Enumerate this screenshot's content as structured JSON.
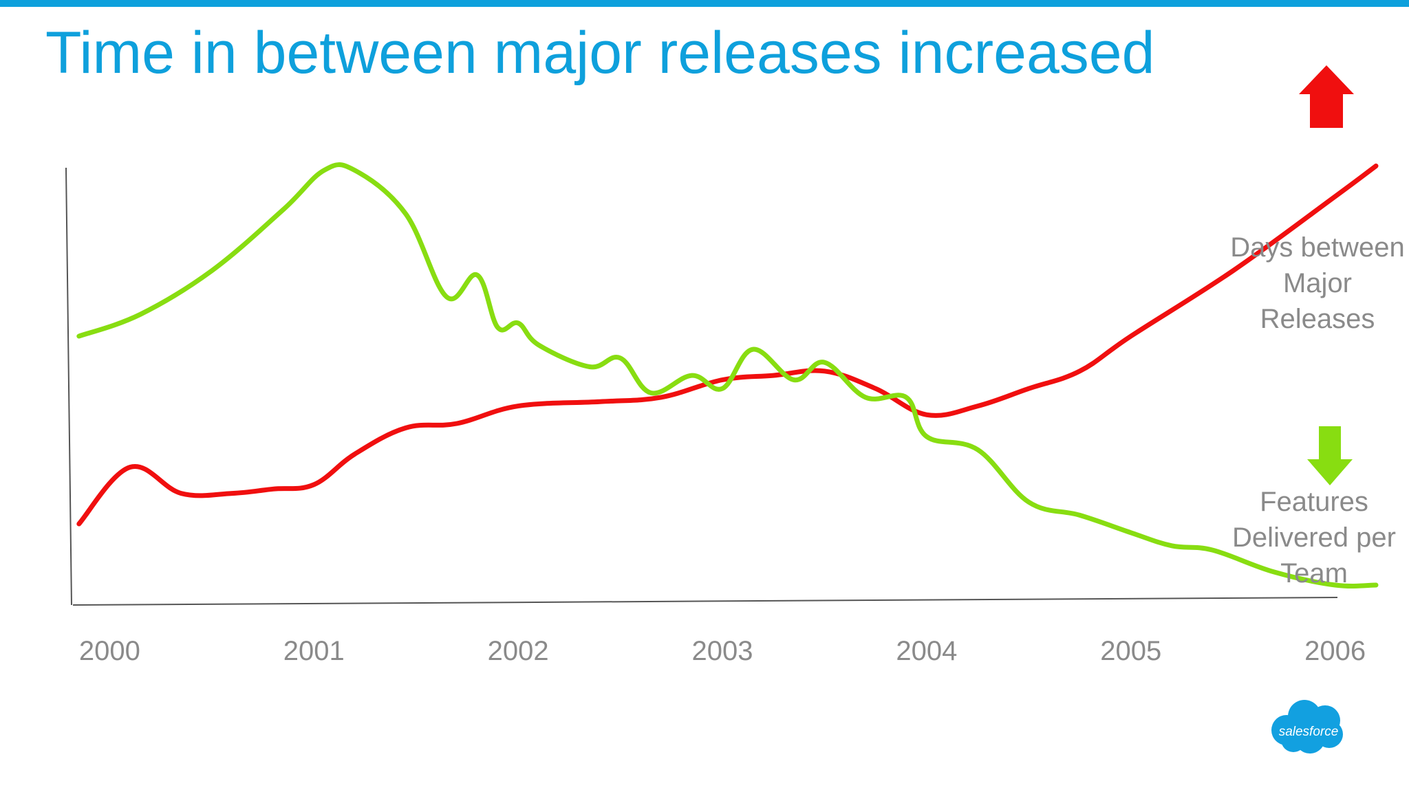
{
  "title": "Time in between major releases increased",
  "legend": {
    "days": [
      "Days between",
      "Major",
      "Releases"
    ],
    "features": [
      "Features",
      "Delivered per",
      "Team"
    ]
  },
  "logo_text": "salesforce",
  "colors": {
    "accent": "#0ea0dc",
    "days_series": "#f00f0f",
    "features_series": "#88dd11",
    "label_text": "#8a8a8a",
    "axis": "#555555"
  },
  "chart_data": {
    "type": "line",
    "x_ticks": [
      "2000",
      "2001",
      "2002",
      "2003",
      "2004",
      "2005",
      "2006"
    ],
    "xlim": [
      1999.8,
      2006.2
    ],
    "ylim": [
      0,
      100
    ],
    "y_axis_labels": false,
    "grid": false,
    "indicators": [
      {
        "series": "Days between Major Releases",
        "direction": "up",
        "color": "#f00f0f"
      },
      {
        "series": "Features Delivered per Team",
        "direction": "down",
        "color": "#88dd11"
      }
    ],
    "series": [
      {
        "name": "Days between Major Releases",
        "color": "#f00f0f",
        "points": [
          [
            1999.85,
            17
          ],
          [
            2000.1,
            30
          ],
          [
            2000.35,
            24
          ],
          [
            2000.6,
            24
          ],
          [
            2000.8,
            25
          ],
          [
            2001.0,
            26
          ],
          [
            2001.2,
            33
          ],
          [
            2001.45,
            39
          ],
          [
            2001.7,
            40
          ],
          [
            2002.0,
            44
          ],
          [
            2002.4,
            45
          ],
          [
            2002.7,
            46
          ],
          [
            2003.0,
            50
          ],
          [
            2003.25,
            51
          ],
          [
            2003.5,
            52
          ],
          [
            2003.75,
            48
          ],
          [
            2004.0,
            42
          ],
          [
            2004.25,
            44
          ],
          [
            2004.5,
            48
          ],
          [
            2004.75,
            52
          ],
          [
            2005.0,
            60
          ],
          [
            2005.5,
            75
          ],
          [
            2006.0,
            92
          ],
          [
            2006.2,
            99
          ]
        ]
      },
      {
        "name": "Features Delivered per Team",
        "color": "#88dd11",
        "points": [
          [
            1999.85,
            60
          ],
          [
            2000.15,
            65
          ],
          [
            2000.5,
            75
          ],
          [
            2000.85,
            89
          ],
          [
            2001.05,
            98
          ],
          [
            2001.2,
            98
          ],
          [
            2001.45,
            88
          ],
          [
            2001.65,
            69
          ],
          [
            2001.8,
            74
          ],
          [
            2001.9,
            62
          ],
          [
            2002.0,
            63
          ],
          [
            2002.1,
            58
          ],
          [
            2002.35,
            53
          ],
          [
            2002.5,
            55
          ],
          [
            2002.65,
            47
          ],
          [
            2002.85,
            51
          ],
          [
            2003.0,
            48
          ],
          [
            2003.15,
            57
          ],
          [
            2003.35,
            50
          ],
          [
            2003.5,
            54
          ],
          [
            2003.7,
            46
          ],
          [
            2003.9,
            46
          ],
          [
            2004.0,
            37
          ],
          [
            2004.25,
            34
          ],
          [
            2004.5,
            22
          ],
          [
            2004.75,
            19
          ],
          [
            2005.0,
            15
          ],
          [
            2005.2,
            12
          ],
          [
            2005.4,
            11
          ],
          [
            2005.7,
            6
          ],
          [
            2006.0,
            3
          ],
          [
            2006.2,
            3
          ]
        ]
      }
    ]
  }
}
